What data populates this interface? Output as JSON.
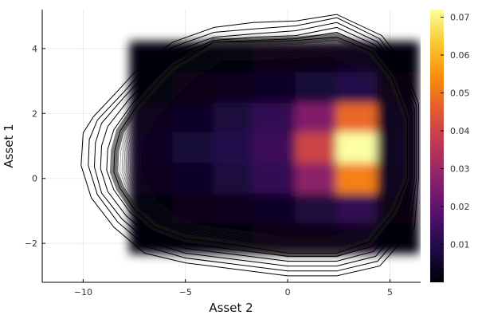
{
  "chart_data": {
    "type": "heatmap",
    "title": "",
    "xlabel": "Asset 2",
    "ylabel": "Asset 1",
    "xlim": [
      -12,
      6.5
    ],
    "ylim": [
      -3.2,
      5.2
    ],
    "x_ticks": [
      -10,
      -5,
      0,
      5
    ],
    "x_tick_labels": [
      "−10",
      "−5",
      "0",
      "5"
    ],
    "y_ticks": [
      -2,
      0,
      2,
      4
    ],
    "y_tick_labels": [
      "−2",
      "0",
      "2",
      "4"
    ],
    "grid": true,
    "legend": "none",
    "colormap": "inferno",
    "colorbar": {
      "range": [
        0,
        0.072
      ],
      "ticks": [
        0.01,
        0.02,
        0.03,
        0.04,
        0.05,
        0.06,
        0.07
      ],
      "tick_labels": [
        "0.01",
        "0.02",
        "0.03",
        "0.04",
        "0.05",
        "0.06",
        "0.07"
      ]
    },
    "density_grid": {
      "x_breaks": [
        -7.7,
        -5.6,
        -3.6,
        -1.7,
        0.4,
        2.4,
        4.4,
        6.4
      ],
      "y_breaks": [
        -2.3,
        -1.35,
        -0.45,
        0.5,
        1.45,
        2.35,
        3.3,
        4.2
      ],
      "values": [
        [
          0.0005,
          0.001,
          0.0015,
          0.002,
          0.0025,
          0.003,
          0.001
        ],
        [
          0.001,
          0.002,
          0.003,
          0.0045,
          0.008,
          0.012,
          0.002
        ],
        [
          0.003,
          0.005,
          0.008,
          0.012,
          0.028,
          0.052,
          0.004
        ],
        [
          0.004,
          0.007,
          0.01,
          0.014,
          0.04,
          0.072,
          0.005
        ],
        [
          0.003,
          0.005,
          0.008,
          0.012,
          0.026,
          0.048,
          0.004
        ],
        [
          0.001,
          0.002,
          0.003,
          0.0045,
          0.007,
          0.01,
          0.002
        ],
        [
          0.0005,
          0.001,
          0.0015,
          0.002,
          0.0025,
          0.003,
          0.001
        ]
      ]
    },
    "contour_rings": [
      [
        [
          2.4,
          5.05
        ],
        [
          0.4,
          4.85
        ],
        [
          -1.7,
          4.8
        ],
        [
          -3.6,
          4.65
        ],
        [
          -5.6,
          4.2
        ],
        [
          -7.0,
          3.6
        ],
        [
          -8.3,
          2.7
        ],
        [
          -9.5,
          1.9
        ],
        [
          -10.0,
          1.4
        ],
        [
          -10.1,
          0.4
        ],
        [
          -9.6,
          -0.6
        ],
        [
          -8.5,
          -1.5
        ],
        [
          -7.0,
          -2.3
        ],
        [
          -5.0,
          -2.6
        ],
        [
          -2.5,
          -2.8
        ],
        [
          0.0,
          -3.0
        ],
        [
          2.4,
          -3.0
        ],
        [
          4.5,
          -2.7
        ],
        [
          6.2,
          -1.5
        ],
        [
          6.4,
          0.0
        ],
        [
          6.4,
          2.3
        ],
        [
          5.6,
          3.6
        ],
        [
          4.6,
          4.4
        ]
      ],
      [
        [
          2.4,
          4.95
        ],
        [
          0.4,
          4.7
        ],
        [
          -1.7,
          4.6
        ],
        [
          -3.6,
          4.5
        ],
        [
          -5.6,
          4.05
        ],
        [
          -6.9,
          3.45
        ],
        [
          -8.1,
          2.6
        ],
        [
          -9.3,
          1.8
        ],
        [
          -9.7,
          1.2
        ],
        [
          -9.75,
          0.4
        ],
        [
          -9.3,
          -0.5
        ],
        [
          -8.3,
          -1.35
        ],
        [
          -6.9,
          -2.1
        ],
        [
          -5.0,
          -2.45
        ],
        [
          -2.5,
          -2.65
        ],
        [
          0.0,
          -2.85
        ],
        [
          2.4,
          -2.85
        ],
        [
          4.4,
          -2.55
        ],
        [
          6.0,
          -1.4
        ],
        [
          6.3,
          0.0
        ],
        [
          6.3,
          2.25
        ],
        [
          5.5,
          3.5
        ],
        [
          4.5,
          4.3
        ]
      ],
      [
        [
          2.4,
          4.8
        ],
        [
          0.4,
          4.55
        ],
        [
          -1.7,
          4.45
        ],
        [
          -3.6,
          4.35
        ],
        [
          -5.6,
          3.9
        ],
        [
          -6.8,
          3.3
        ],
        [
          -8.0,
          2.5
        ],
        [
          -9.1,
          1.7
        ],
        [
          -9.4,
          1.1
        ],
        [
          -9.45,
          0.35
        ],
        [
          -9.1,
          -0.45
        ],
        [
          -8.1,
          -1.25
        ],
        [
          -6.8,
          -1.95
        ],
        [
          -5.0,
          -2.3
        ],
        [
          -2.5,
          -2.5
        ],
        [
          0.0,
          -2.7
        ],
        [
          2.4,
          -2.7
        ],
        [
          4.3,
          -2.4
        ],
        [
          5.8,
          -1.3
        ],
        [
          6.2,
          0.0
        ],
        [
          6.2,
          2.15
        ],
        [
          5.4,
          3.4
        ],
        [
          4.4,
          4.2
        ]
      ],
      [
        [
          2.4,
          4.65
        ],
        [
          0.4,
          4.4
        ],
        [
          -1.7,
          4.35
        ],
        [
          -3.6,
          4.25
        ],
        [
          -5.6,
          3.75
        ],
        [
          -6.7,
          3.15
        ],
        [
          -7.8,
          2.4
        ],
        [
          -8.8,
          1.6
        ],
        [
          -9.1,
          1.0
        ],
        [
          -9.15,
          0.3
        ],
        [
          -8.8,
          -0.4
        ],
        [
          -7.9,
          -1.15
        ],
        [
          -6.7,
          -1.8
        ],
        [
          -5.0,
          -2.15
        ],
        [
          -2.5,
          -2.35
        ],
        [
          0.0,
          -2.55
        ],
        [
          2.4,
          -2.55
        ],
        [
          4.2,
          -2.25
        ],
        [
          5.6,
          -1.2
        ],
        [
          6.1,
          0.0
        ],
        [
          6.1,
          2.05
        ],
        [
          5.3,
          3.3
        ],
        [
          4.3,
          4.1
        ]
      ],
      [
        [
          2.4,
          4.5
        ],
        [
          0.4,
          4.3
        ],
        [
          -1.7,
          4.25
        ],
        [
          -3.6,
          4.2
        ],
        [
          -5.6,
          3.6
        ],
        [
          -6.6,
          3.0
        ],
        [
          -7.6,
          2.3
        ],
        [
          -8.5,
          1.5
        ],
        [
          -8.8,
          0.9
        ],
        [
          -8.85,
          0.25
        ],
        [
          -8.5,
          -0.35
        ],
        [
          -7.7,
          -1.05
        ],
        [
          -6.6,
          -1.65
        ],
        [
          -5.0,
          -2.0
        ],
        [
          -2.5,
          -2.2
        ],
        [
          0.0,
          -2.4
        ],
        [
          2.4,
          -2.4
        ],
        [
          4.1,
          -2.1
        ],
        [
          5.4,
          -1.1
        ],
        [
          6.0,
          0.0
        ],
        [
          6.0,
          1.95
        ],
        [
          5.2,
          3.2
        ],
        [
          4.2,
          4.0
        ]
      ],
      [
        [
          2.4,
          4.35
        ],
        [
          0.4,
          4.25
        ],
        [
          -1.7,
          4.2
        ],
        [
          -3.6,
          4.2
        ],
        [
          -5.6,
          3.45
        ],
        [
          -6.5,
          2.85
        ],
        [
          -7.4,
          2.2
        ],
        [
          -8.2,
          1.45
        ],
        [
          -8.45,
          0.85
        ],
        [
          -8.5,
          0.2
        ],
        [
          -8.2,
          -0.3
        ],
        [
          -7.5,
          -0.95
        ],
        [
          -6.5,
          -1.5
        ],
        [
          -5.0,
          -1.85
        ],
        [
          -2.5,
          -2.05
        ],
        [
          0.0,
          -2.3
        ],
        [
          2.4,
          -2.3
        ],
        [
          4.0,
          -1.95
        ],
        [
          5.2,
          -1.0
        ],
        [
          5.85,
          0.0
        ],
        [
          5.85,
          1.85
        ],
        [
          5.1,
          3.1
        ],
        [
          4.1,
          3.9
        ]
      ]
    ]
  }
}
